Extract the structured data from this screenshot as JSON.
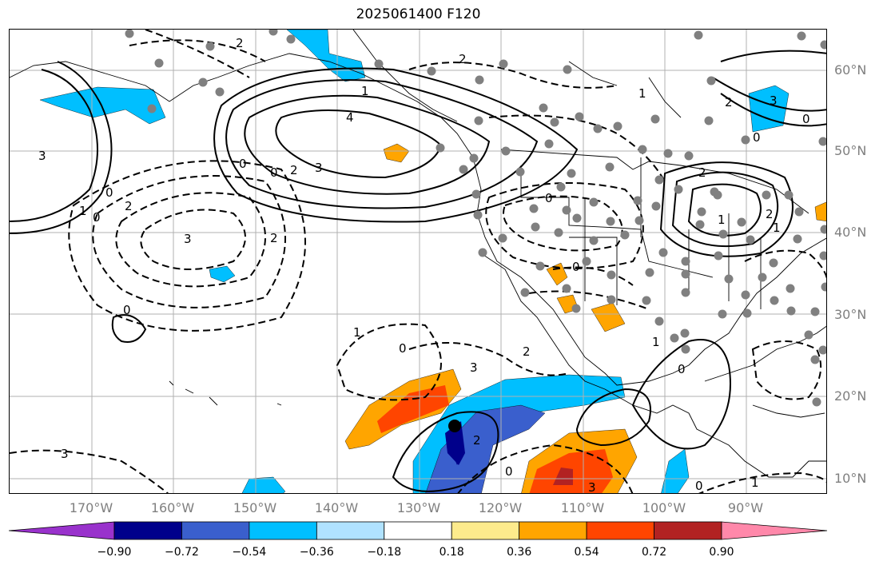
{
  "title": "2025061400 F120",
  "lat_labels": [
    "60°N",
    "50°N",
    "40°N",
    "30°N",
    "20°N",
    "10°N"
  ],
  "lon_labels": [
    "170°W",
    "160°W",
    "150°W",
    "140°W",
    "130°W",
    "120°W",
    "110°W",
    "100°W",
    "90°W"
  ],
  "colorbar": {
    "ticks": [
      "−0.90",
      "−0.72",
      "−0.54",
      "−0.36",
      "−0.18",
      "0.18",
      "0.36",
      "0.54",
      "0.72",
      "0.90"
    ],
    "colors": [
      "#9932cc",
      "#00008b",
      "#3a5fcd",
      "#00bfff",
      "#b0e2ff",
      "#ffffff",
      "#fdeb8c",
      "#ffa500",
      "#ff4500",
      "#b22222",
      "#ff88aa"
    ]
  },
  "contour_labels": [
    "2",
    "2",
    "1",
    "4",
    "3",
    "0",
    "0",
    "2",
    "3",
    "3",
    "2",
    "0",
    "1",
    "0",
    "2",
    "3",
    "0",
    "0",
    "1",
    "2",
    "2",
    "1",
    "0",
    "0",
    "1",
    "0",
    "2",
    "3",
    "0",
    "3",
    "2",
    "0",
    "3",
    "1",
    "0",
    "1",
    "0",
    "2",
    "1"
  ],
  "colors": {
    "land_border": "#000000",
    "grid": "#b0b0b0",
    "station": "#808080",
    "marker": "#000000"
  }
}
